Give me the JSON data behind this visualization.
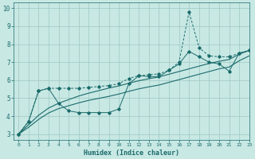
{
  "xlabel": "Humidex (Indice chaleur)",
  "xlim": [
    -0.5,
    23
  ],
  "ylim": [
    2.7,
    10.3
  ],
  "yticks": [
    3,
    4,
    5,
    6,
    7,
    8,
    9,
    10
  ],
  "xticks": [
    0,
    1,
    2,
    3,
    4,
    5,
    6,
    7,
    8,
    9,
    10,
    11,
    12,
    13,
    14,
    15,
    16,
    17,
    18,
    19,
    20,
    21,
    22,
    23
  ],
  "background_color": "#c8e8e4",
  "grid_color": "#9dc8c4",
  "line_color": "#1a6b6b",
  "x": [
    0,
    1,
    2,
    3,
    4,
    5,
    6,
    7,
    8,
    9,
    10,
    11,
    12,
    13,
    14,
    15,
    16,
    17,
    18,
    19,
    20,
    21,
    22,
    23
  ],
  "y_jagged_upper": [
    3.0,
    3.7,
    5.4,
    5.55,
    5.55,
    5.55,
    5.55,
    5.6,
    5.65,
    5.7,
    5.8,
    6.1,
    6.25,
    6.3,
    6.35,
    6.55,
    7.0,
    9.8,
    7.8,
    7.35,
    7.3,
    7.3,
    7.5,
    7.65
  ],
  "y_jagged_lower": [
    3.0,
    3.7,
    5.4,
    5.55,
    4.7,
    4.3,
    4.2,
    4.2,
    4.2,
    4.2,
    4.4,
    5.8,
    6.25,
    6.2,
    6.2,
    6.55,
    6.9,
    7.6,
    7.3,
    7.0,
    6.9,
    6.5,
    7.5,
    7.65
  ],
  "y_line1": [
    3.0,
    3.52,
    4.05,
    4.45,
    4.72,
    4.92,
    5.12,
    5.28,
    5.42,
    5.56,
    5.68,
    5.83,
    5.97,
    6.08,
    6.18,
    6.33,
    6.48,
    6.63,
    6.78,
    6.93,
    7.05,
    7.15,
    7.45,
    7.65
  ],
  "y_line2": [
    3.0,
    3.38,
    3.82,
    4.18,
    4.42,
    4.58,
    4.74,
    4.88,
    4.99,
    5.1,
    5.23,
    5.38,
    5.52,
    5.63,
    5.73,
    5.88,
    6.03,
    6.18,
    6.33,
    6.48,
    6.63,
    6.73,
    7.08,
    7.35
  ]
}
